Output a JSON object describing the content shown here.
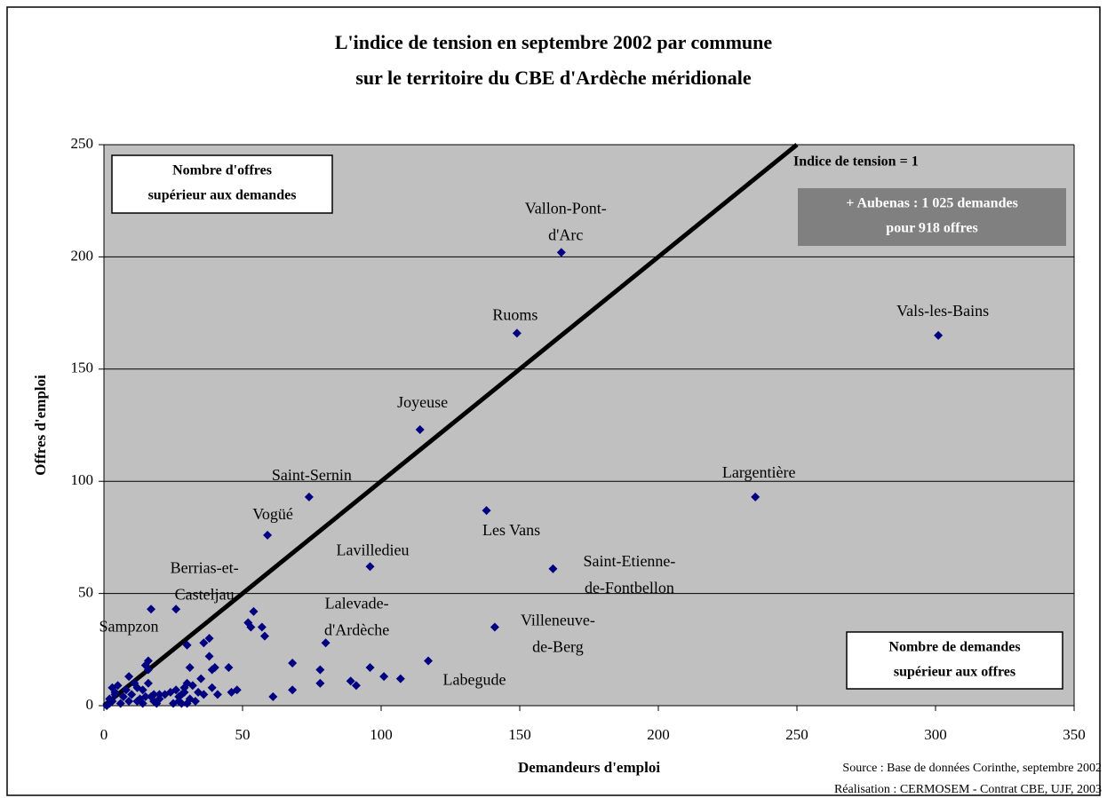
{
  "chart_data": {
    "type": "scatter",
    "title": [
      "L'indice de tension en septembre 2002 par commune",
      "sur le territoire du CBE d'Ardèche méridionale"
    ],
    "x_label": "Demandeurs d'emploi",
    "y_label": "Offres d'emploi",
    "xlim": [
      0,
      350
    ],
    "xticks": [
      0,
      50,
      100,
      150,
      200,
      250,
      300,
      350
    ],
    "ylim": [
      0,
      250
    ],
    "yticks": [
      0,
      50,
      100,
      150,
      200,
      250
    ],
    "grid": true,
    "color": "#000080",
    "x": [
      165,
      149,
      301,
      114,
      235,
      74,
      138,
      59,
      96,
      162,
      26,
      17,
      80,
      141,
      117,
      54,
      52,
      53,
      57,
      58,
      68,
      68,
      61,
      78,
      78,
      89,
      91,
      96,
      101,
      107,
      45,
      46,
      48,
      40,
      39,
      38,
      38,
      36,
      35,
      36,
      39,
      41,
      34,
      31,
      30,
      30,
      31,
      29,
      28,
      27,
      26,
      27,
      28,
      25,
      24,
      22,
      20,
      20,
      19,
      18,
      17,
      16,
      16,
      15,
      16,
      14,
      15,
      14,
      13,
      12,
      11,
      10,
      9,
      9,
      8,
      7,
      6,
      5,
      4,
      3,
      3,
      2,
      2,
      1,
      4,
      12,
      18,
      33,
      30,
      29,
      32
    ],
    "y": [
      202,
      166,
      165,
      123,
      93,
      93,
      87,
      76,
      62,
      61,
      43,
      43,
      28,
      35,
      20,
      42,
      37,
      35,
      35,
      31,
      19,
      7,
      4,
      16,
      10,
      11,
      9,
      17,
      13,
      12,
      17,
      6,
      7,
      17,
      16,
      30,
      22,
      28,
      12,
      5,
      8,
      5,
      6,
      17,
      27,
      10,
      3,
      8,
      5,
      2,
      7,
      4,
      1,
      1,
      6,
      5,
      3,
      5,
      1,
      2,
      4,
      20,
      16,
      18,
      10,
      7,
      4,
      1,
      3,
      8,
      10,
      5,
      13,
      2,
      7,
      4,
      1,
      9,
      5,
      8,
      2,
      3,
      1,
      0,
      6,
      2,
      5,
      2,
      1,
      6,
      9
    ],
    "labels": [
      [
        "Vallon-Pont-",
        "d'Arc"
      ],
      [
        "Ruoms"
      ],
      [
        "Vals-les-Bains"
      ],
      [
        "Joyeuse"
      ],
      [
        "Largentière"
      ],
      [
        "Saint-Sernin"
      ],
      [
        "Les Vans"
      ],
      [
        "Vogüé"
      ],
      [
        "Lavilledieu"
      ],
      [
        "Saint-Etienne-",
        "de-Fontbellon"
      ],
      [
        "Berrias-et-",
        "Casteljau"
      ],
      [
        "Sampzon"
      ],
      [
        "Lalevade-",
        "d'Ardèche"
      ],
      [
        "Villeneuve-",
        "de-Berg"
      ],
      [
        "Labegude"
      ]
    ],
    "reference_line": {
      "label": "Indice de tension = 1",
      "x": [
        0,
        250
      ],
      "y": [
        0,
        250
      ]
    },
    "annotations": [
      [
        "Nombre d'offres",
        "supérieur aux demandes"
      ],
      [
        "Nombre de demandes",
        "supérieur aux offres"
      ],
      [
        "+ Aubenas : 1 025 demandes",
        "pour 918 offres"
      ]
    ],
    "source": [
      "Source : Base de données Corinthe, septembre 2002",
      "Réalisation : CERMOSEM - Contrat CBE, UJF, 2003"
    ]
  }
}
